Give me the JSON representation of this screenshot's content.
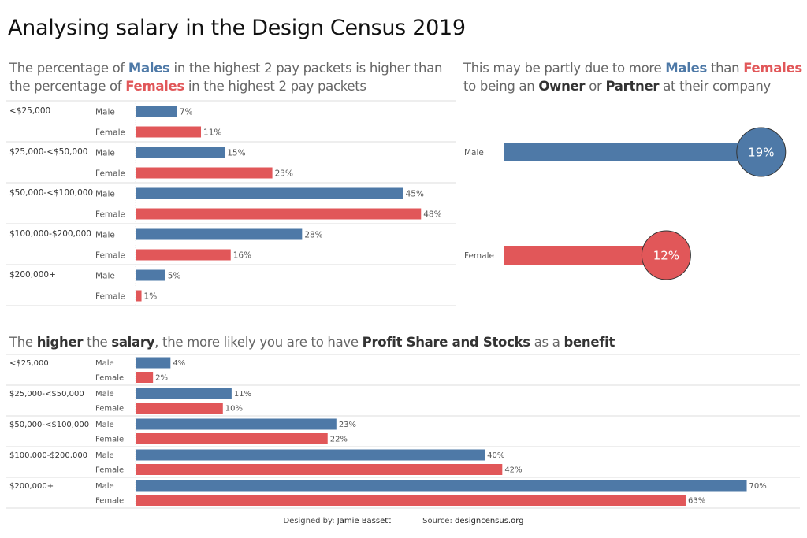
{
  "title": "Analysing salary in the Design Census 2019",
  "colors": {
    "male": "#4e79a7",
    "female": "#e15759",
    "separator": "#e3e3e3",
    "label": "#555555"
  },
  "subtitles": {
    "chart1": [
      {
        "text": "The percentage of ",
        "style": "plain"
      },
      {
        "text": "Males",
        "style": "male"
      },
      {
        "text": " in the highest 2 pay packets is higher than",
        "style": "plain"
      },
      {
        "text": "\n",
        "style": "break"
      },
      {
        "text": "the percentage of ",
        "style": "plain"
      },
      {
        "text": "Females",
        "style": "female"
      },
      {
        "text": " in the highest 2 pay packets",
        "style": "plain"
      }
    ],
    "chart2": [
      {
        "text": "This may be partly due to more ",
        "style": "plain"
      },
      {
        "text": "Males",
        "style": "male"
      },
      {
        "text": " than ",
        "style": "plain"
      },
      {
        "text": "Females",
        "style": "female"
      },
      {
        "text": "\n",
        "style": "break"
      },
      {
        "text": "to being an ",
        "style": "plain"
      },
      {
        "text": "Owner",
        "style": "bold"
      },
      {
        "text": " or ",
        "style": "plain"
      },
      {
        "text": "Partner",
        "style": "bold"
      },
      {
        "text": " at their company",
        "style": "plain"
      }
    ],
    "chart3": [
      {
        "text": "The ",
        "style": "plain"
      },
      {
        "text": "higher",
        "style": "bold"
      },
      {
        "text": " the ",
        "style": "plain"
      },
      {
        "text": "salary",
        "style": "bold"
      },
      {
        "text": ", the more likely you are to have ",
        "style": "plain"
      },
      {
        "text": "Profit Share and Stocks",
        "style": "bold"
      },
      {
        "text": " as a ",
        "style": "plain"
      },
      {
        "text": "benefit",
        "style": "bold"
      }
    ]
  },
  "chart_data": [
    {
      "id": "pay-packets",
      "type": "bar",
      "orientation": "horizontal",
      "title": "Percentage of Males / Females in each pay packet",
      "categories": [
        "<$25,000",
        "$25,000-<$50,000",
        "$50,000-<$100,000",
        "$100,000-$200,000",
        "$200,000+"
      ],
      "series": [
        {
          "name": "Male",
          "values": [
            7,
            15,
            45,
            28,
            5
          ]
        },
        {
          "name": "Female",
          "values": [
            11,
            23,
            48,
            16,
            1
          ]
        }
      ],
      "unit": "%",
      "xlim": [
        0,
        53
      ],
      "grid": false
    },
    {
      "id": "owner-partner",
      "type": "bar",
      "style": "lollipop",
      "title": "Owner or Partner at their company",
      "categories": [
        "Male",
        "Female"
      ],
      "values": [
        19,
        12
      ],
      "unit": "%",
      "xlim": [
        0,
        21
      ]
    },
    {
      "id": "profit-share",
      "type": "bar",
      "orientation": "horizontal",
      "title": "Profit Share and Stocks as a benefit",
      "categories": [
        "<$25,000",
        "$25,000-<$50,000",
        "$50,000-<$100,000",
        "$100,000-$200,000",
        "$200,000+"
      ],
      "series": [
        {
          "name": "Male",
          "values": [
            4,
            11,
            23,
            40,
            70
          ]
        },
        {
          "name": "Female",
          "values": [
            2,
            10,
            22,
            42,
            63
          ]
        }
      ],
      "unit": "%",
      "xlim": [
        0,
        76
      ],
      "grid": false
    }
  ],
  "footer": {
    "designed_label": "Designed by: ",
    "designer": "Jamie Bassett",
    "source_label": "Source: ",
    "source": "designcensus.org"
  }
}
